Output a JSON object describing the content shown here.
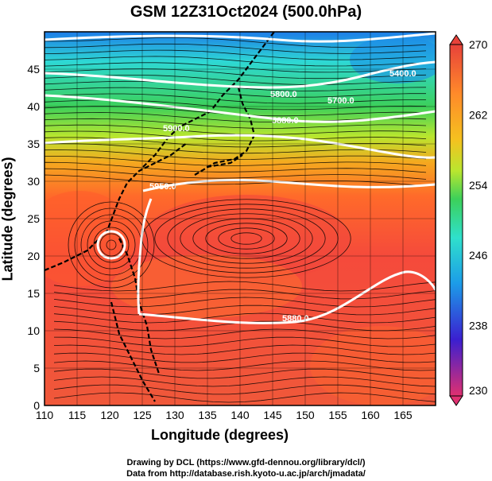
{
  "title": "GSM 12Z31Oct2024 (500.0hPa)",
  "axes": {
    "xlabel": "Longitude (degrees)",
    "ylabel": "Latitude  (degrees)",
    "x_ticks": [
      "110",
      "115",
      "120",
      "125",
      "130",
      "135",
      "140",
      "145",
      "150",
      "155",
      "160",
      "165"
    ],
    "y_ticks": [
      "0",
      "5",
      "10",
      "15",
      "20",
      "25",
      "30",
      "35",
      "40",
      "45"
    ]
  },
  "colorbar": {
    "ticks": [
      "270",
      "262",
      "254",
      "246",
      "238",
      "230"
    ],
    "colors": [
      "#e03070",
      "#3b1fd0",
      "#1c9ce8",
      "#2fe0cc",
      "#3cd05a",
      "#b9e62f",
      "#f5c11f",
      "#ff7a2a",
      "#f24a3b"
    ]
  },
  "contour_labels": [
    "5400.0",
    "5700.0",
    "5800.0",
    "5880.0",
    "5900.0",
    "5950.0",
    "5880.0"
  ],
  "credits": {
    "line1": "Drawing by DCL (https://www.gfd-dennou.org/library/dcl/)",
    "line2": "Data from http://database.rish.kyoto-u.ac.jp/arch/jmadata/"
  },
  "chart_data": {
    "type": "heatmap",
    "title": "GSM 12Z31Oct2024 (500.0hPa)",
    "xlabel": "Longitude (degrees)",
    "ylabel": "Latitude  (degrees)",
    "xlim": [
      110,
      170
    ],
    "ylim": [
      0,
      50
    ],
    "colorbar_range": [
      230,
      270
    ],
    "overlays": [
      "temperature shading",
      "geopotential height contours",
      "wind streamlines"
    ]
  }
}
